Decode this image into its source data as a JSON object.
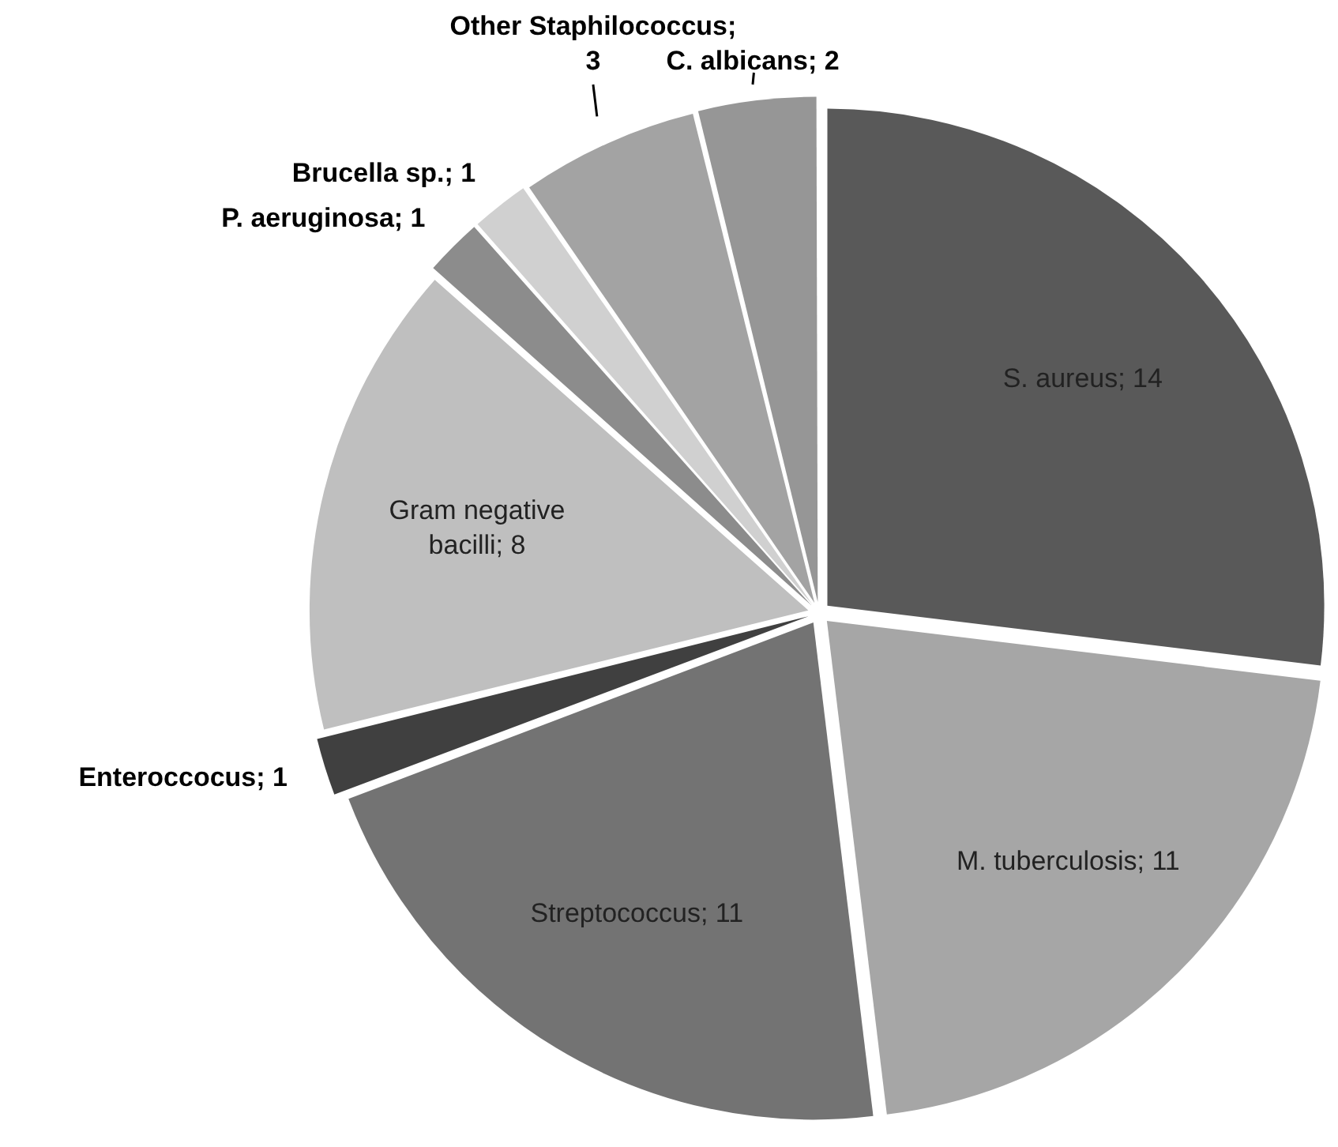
{
  "chart_data": {
    "type": "pie",
    "categories": [
      "S. aureus; 14",
      "M. tuberculosis; 11",
      "Streptococcus; 11",
      "Enteroccocus; 1",
      "Gram negative bacilli; 8",
      "P. aeruginosa; 1",
      "Brucella sp.; 1",
      "Other Staphilococcus; 3",
      "C. albicans; 2"
    ],
    "values": [
      14,
      11,
      11,
      1,
      8,
      1,
      1,
      3,
      2
    ],
    "colors": [
      "#595959",
      "#a6a6a6",
      "#737373",
      "#404040",
      "#bfbfbf",
      "#8c8c8c",
      "#d0d0d0",
      "#a3a3a3",
      "#969696"
    ],
    "legend": false
  }
}
